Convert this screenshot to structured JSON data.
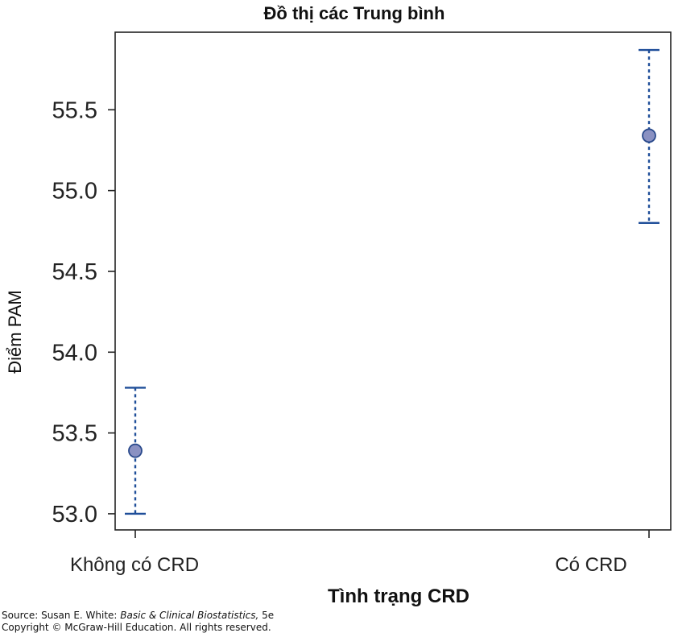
{
  "chart_data": {
    "type": "scatter",
    "title": "Đồ thị các Trung bình",
    "xlabel": "Tình trạng CRD",
    "ylabel": "Điểm PAM",
    "categories": [
      "Không có CRD",
      "Có CRD"
    ],
    "means": [
      53.39,
      55.34
    ],
    "lower": [
      53.0,
      54.8
    ],
    "upper": [
      53.78,
      55.87
    ],
    "ylim": [
      52.9,
      55.98
    ],
    "yticks": [
      53.0,
      53.5,
      54.0,
      54.5,
      55.0,
      55.5
    ],
    "ytick_labels": [
      "53.0",
      "53.5",
      "54.0",
      "54.5",
      "55.0",
      "55.5"
    ],
    "grid": false,
    "colors": {
      "marker_fill": "#8a91c2",
      "marker_edge": "#2a4a8c",
      "errorbar": "#1f4e99"
    }
  },
  "source": {
    "prefix": "Source: Susan E. White: ",
    "book": "Basic & Clinical Biostatistics,",
    "edition": " 5e",
    "copyright": "Copyright © McGraw-Hill Education. All rights reserved."
  }
}
